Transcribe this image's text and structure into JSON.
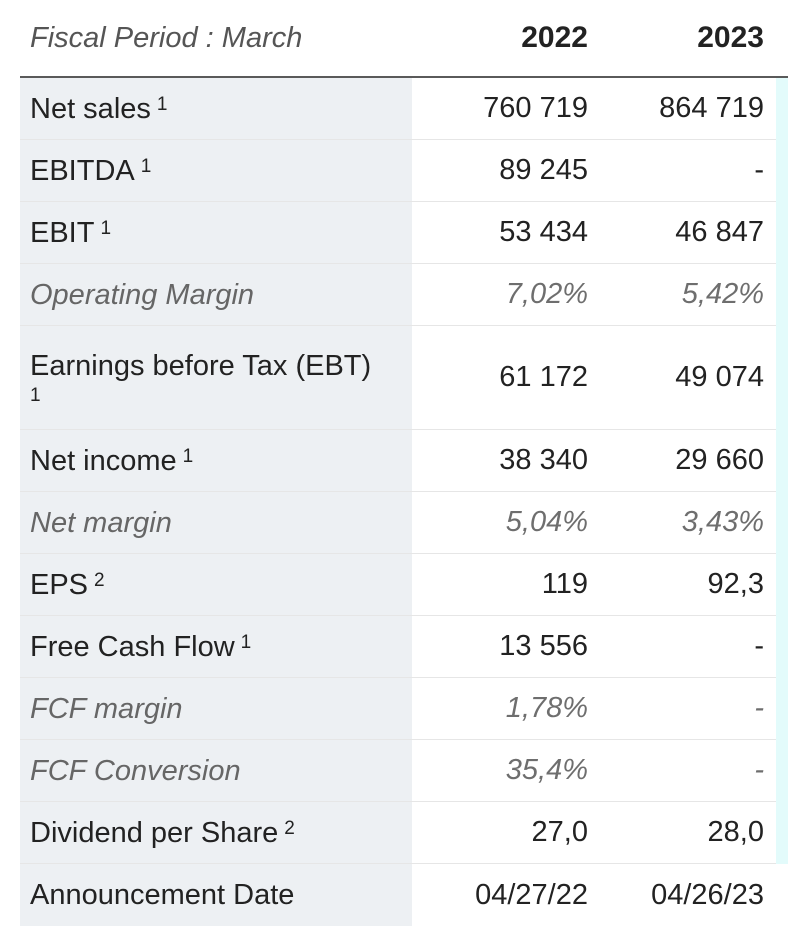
{
  "header": {
    "label": "Fiscal Period : March",
    "years": [
      "2022",
      "2023"
    ]
  },
  "rows": [
    {
      "label": "Net sales",
      "note": "1",
      "v2022": "760 719",
      "v2023": "864 719",
      "italic": false
    },
    {
      "label": "EBITDA",
      "note": "1",
      "v2022": "89 245",
      "v2023": "-",
      "italic": false
    },
    {
      "label": "EBIT",
      "note": "1",
      "v2022": "53 434",
      "v2023": "46 847",
      "italic": false
    },
    {
      "label": "Operating Margin",
      "note": "",
      "v2022": "7,02%",
      "v2023": "5,42%",
      "italic": true
    },
    {
      "label": "Earnings before Tax (EBT)",
      "note": "1",
      "v2022": "61 172",
      "v2023": "49 074",
      "italic": false
    },
    {
      "label": "Net income",
      "note": "1",
      "v2022": "38 340",
      "v2023": "29 660",
      "italic": false
    },
    {
      "label": "Net margin",
      "note": "",
      "v2022": "5,04%",
      "v2023": "3,43%",
      "italic": true
    },
    {
      "label": "EPS",
      "note": "2",
      "v2022": "119",
      "v2023": "92,3",
      "italic": false
    },
    {
      "label": "Free Cash Flow",
      "note": "1",
      "v2022": "13 556",
      "v2023": "-",
      "italic": false
    },
    {
      "label": "FCF margin",
      "note": "",
      "v2022": "1,78%",
      "v2023": "-",
      "italic": true
    },
    {
      "label": "FCF Conversion",
      "note": "",
      "v2022": "35,4%",
      "v2023": "-",
      "italic": true
    },
    {
      "label": "Dividend per Share",
      "note": "2",
      "v2022": "27,0",
      "v2023": "28,0",
      "italic": false
    },
    {
      "label": "Announcement Date",
      "note": "",
      "v2022": "04/27/22",
      "v2023": "04/26/23",
      "italic": false
    }
  ]
}
